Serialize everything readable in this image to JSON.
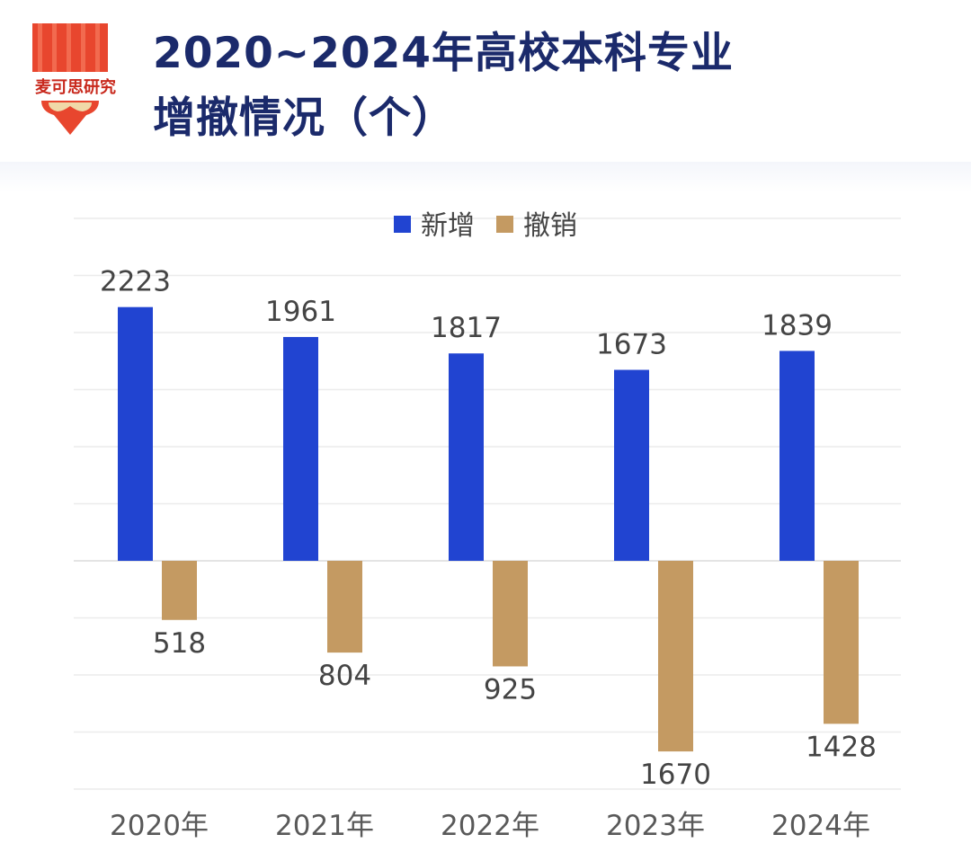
{
  "header": {
    "logo_text": "麦可思研究",
    "title_line1": "2020~2024年高校本科专业",
    "title_line2": "增撤情况（个）"
  },
  "colors": {
    "title": "#1b2a6b",
    "added": "#2144d1",
    "removed": "#c49a62",
    "logo_red": "#e8462e",
    "logo_heart": "#f0d9a8"
  },
  "chart_data": {
    "type": "bar",
    "categories": [
      "2020年",
      "2021年",
      "2022年",
      "2023年",
      "2024年"
    ],
    "series": [
      {
        "name": "新增",
        "values": [
          2223,
          1961,
          1817,
          1673,
          1839
        ],
        "direction": "up"
      },
      {
        "name": "撤销",
        "values": [
          518,
          804,
          925,
          1670,
          1428
        ],
        "direction": "down"
      }
    ],
    "legend_position": "top-center",
    "grid": true,
    "gridline_step": 500,
    "ylim": [
      -2000,
      3000
    ]
  }
}
